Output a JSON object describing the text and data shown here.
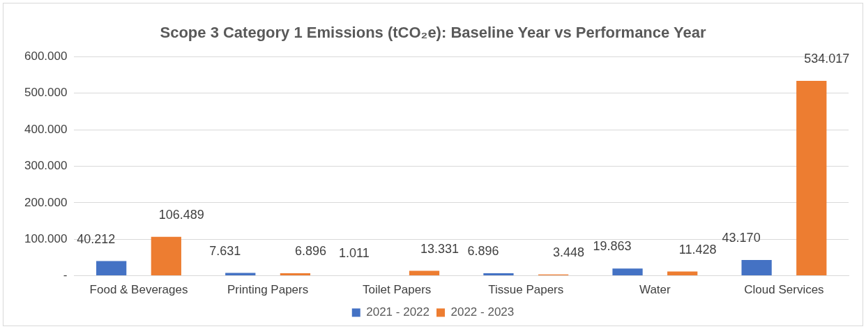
{
  "chart_data": {
    "type": "bar",
    "title": "Scope 3 Category 1 Emissions (tCO₂e): Baseline Year vs Performance Year",
    "categories": [
      "Food & Beverages",
      "Printing Papers",
      "Toilet Papers",
      "Tissue Papers",
      "Water",
      "Cloud Services"
    ],
    "series": [
      {
        "name": "2021 - 2022",
        "color": "#4472c4",
        "values": [
          40.212,
          7.631,
          1.011,
          6.896,
          19.863,
          43.17
        ],
        "value_labels": [
          "40.212",
          "7.631",
          "1.011",
          "6.896",
          "19.863",
          "43.170"
        ]
      },
      {
        "name": "2022 - 2023",
        "color": "#ed7d31",
        "values": [
          106.489,
          6.896,
          13.331,
          3.448,
          11.428,
          534.017
        ],
        "value_labels": [
          "106.489",
          "6.896",
          "13.331",
          "3.448",
          "11.428",
          "534.017"
        ]
      }
    ],
    "ylim": [
      0,
      600
    ],
    "yticks": [
      {
        "value": 0,
        "label": "-"
      },
      {
        "value": 100,
        "label": "100.000"
      },
      {
        "value": 200,
        "label": "200.000"
      },
      {
        "value": 300,
        "label": "300.000"
      },
      {
        "value": 400,
        "label": "400.000"
      },
      {
        "value": 500,
        "label": "500.000"
      },
      {
        "value": 600,
        "label": "600.000"
      }
    ],
    "grid": "y",
    "legend": "bottom"
  }
}
